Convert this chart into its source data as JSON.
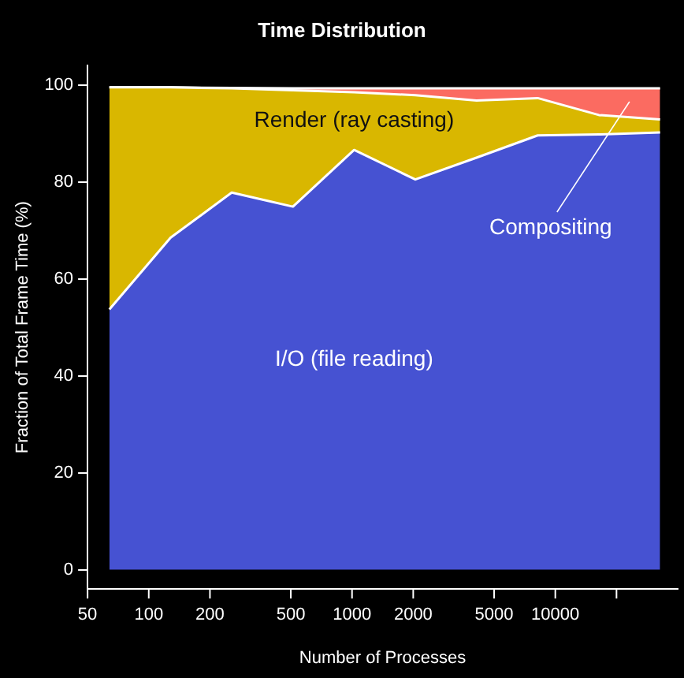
{
  "chart_data": {
    "type": "area",
    "stacked": true,
    "title": "Time Distribution",
    "xlabel": "Number of Processes",
    "ylabel": "Fraction of Total Frame Time (%)",
    "x": [
      64,
      128,
      256,
      512,
      1024,
      2048,
      4096,
      8192,
      16384,
      32768
    ],
    "series": [
      {
        "name": "I/O (file reading)",
        "color": "#4652d2",
        "values": [
          53.7,
          68.5,
          77.8,
          74.9,
          86.6,
          80.5,
          85,
          89.6,
          89.8,
          90.2
        ]
      },
      {
        "name": "Render (ray casting)",
        "color": "#d9b700",
        "values": [
          45.8,
          31.0,
          21.5,
          24.0,
          11.9,
          17.4,
          11.8,
          7.7,
          4.0,
          2.7
        ]
      },
      {
        "name": "Compositing",
        "color": "#fb6b61",
        "values": [
          0,
          0,
          0.1,
          0.4,
          0.8,
          1.4,
          2.5,
          2.0,
          5.5,
          6.4
        ]
      }
    ],
    "log": "x",
    "xlim": [
      50,
      40000
    ],
    "ylim": [
      -4,
      104
    ],
    "xticks": [
      50,
      100,
      200,
      500,
      1000,
      2000,
      5000,
      10000,
      {
        "value": 20000,
        "label": null
      }
    ],
    "yticks": [
      0,
      20,
      40,
      60,
      80,
      100
    ],
    "grid": false,
    "legend": false,
    "marker": "none",
    "line_style": "solid"
  }
}
